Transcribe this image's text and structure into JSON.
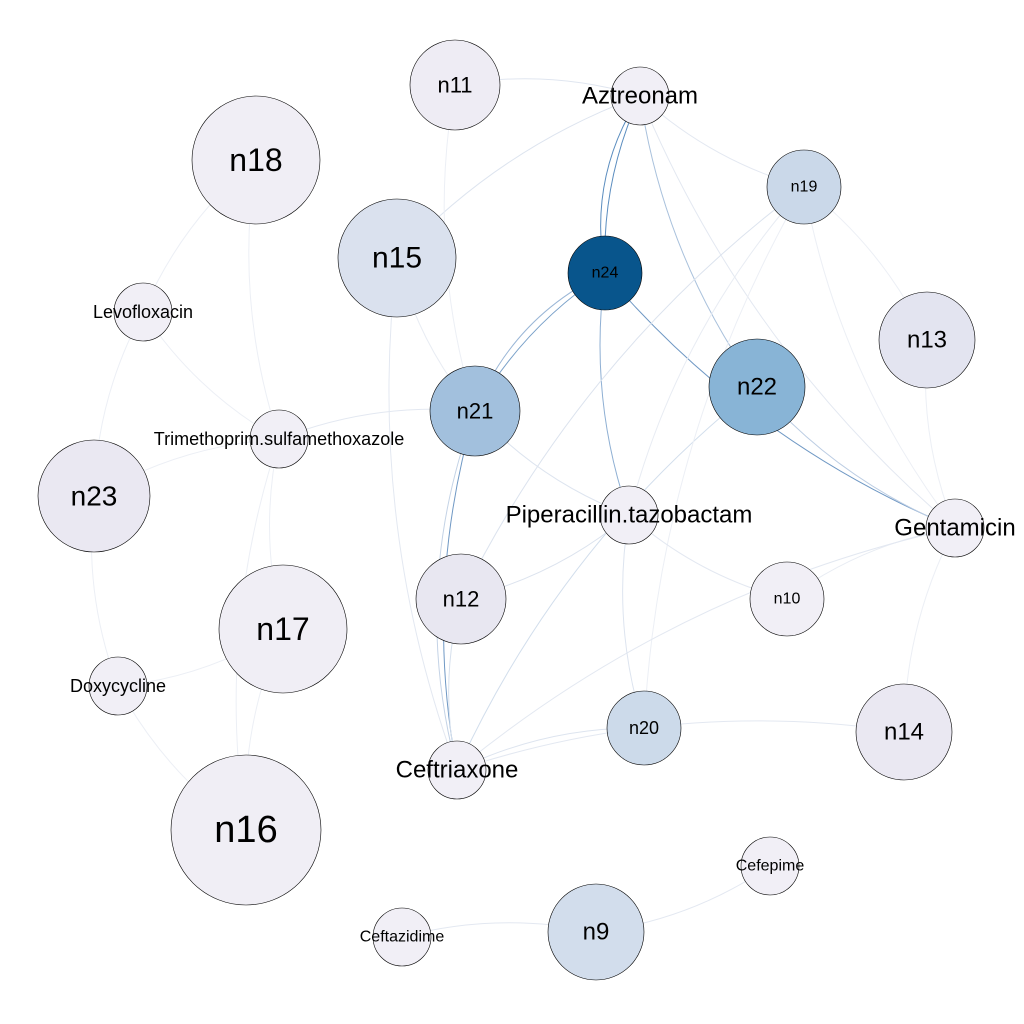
{
  "nodes": [
    {
      "id": "n24",
      "label": "n24",
      "color": "#08558c"
    },
    {
      "id": "n22",
      "label": "n22",
      "color": "#88b4d6"
    },
    {
      "id": "n21",
      "label": "n21",
      "color": "#a2c0dd"
    },
    {
      "id": "n15",
      "label": "n15",
      "color": "#dae1ee"
    },
    {
      "id": "n19",
      "label": "n19",
      "color": "#cad8e9"
    },
    {
      "id": "n20",
      "label": "n20",
      "color": "#ccdaea"
    },
    {
      "id": "n9",
      "label": "n9",
      "color": "#d2ddec"
    },
    {
      "id": "n13",
      "label": "n13",
      "color": "#e3e4f0"
    },
    {
      "id": "n12",
      "label": "n12",
      "color": "#e8e7f1"
    },
    {
      "id": "n23",
      "label": "n23",
      "color": "#eae8f2"
    },
    {
      "id": "n14",
      "label": "n14",
      "color": "#eae8f2"
    },
    {
      "id": "n11",
      "label": "n11",
      "color": "#eeecf4"
    },
    {
      "id": "n18",
      "label": "n18",
      "color": "#f0eef5"
    },
    {
      "id": "n16",
      "label": "n16",
      "color": "#f0eef5"
    },
    {
      "id": "n17",
      "label": "n17",
      "color": "#f0eef5"
    },
    {
      "id": "n10",
      "label": "n10",
      "color": "#f1eff6"
    },
    {
      "id": "Aztreonam",
      "label": "Aztreonam",
      "color": "#f1eff6"
    },
    {
      "id": "Levofloxacin",
      "label": "Levofloxacin",
      "color": "#f1eff6"
    },
    {
      "id": "Trimethoprim",
      "label": "Trimethoprim.sulfamethoxazole",
      "color": "#f1eff6"
    },
    {
      "id": "Piperacillin",
      "label": "Piperacillin.tazobactam",
      "color": "#f1eff6"
    },
    {
      "id": "Gentamicin",
      "label": "Gentamicin",
      "color": "#f1eff6"
    },
    {
      "id": "Doxycycline",
      "label": "Doxycycline",
      "color": "#f1eff6"
    },
    {
      "id": "Ceftriaxone",
      "label": "Ceftriaxone",
      "color": "#f1eff6"
    },
    {
      "id": "Cefepime",
      "label": "Cefepime",
      "color": "#f1eff6"
    },
    {
      "id": "Ceftazidime",
      "label": "Ceftazidime",
      "color": "#f1eff6"
    }
  ],
  "edges": [
    {
      "source": "Aztreonam",
      "target": "n24",
      "color": "#5b8dbf"
    },
    {
      "source": "Aztreonam",
      "target": "n24",
      "color": "#5b8dbf"
    },
    {
      "source": "n24",
      "target": "n21",
      "color": "#7aa1c9"
    },
    {
      "source": "n24",
      "target": "n21",
      "color": "#9ab6d6"
    },
    {
      "source": "n24",
      "target": "Gentamicin",
      "color": "#6f98c4"
    },
    {
      "source": "n24",
      "target": "Piperacillin",
      "color": "#8eafd3"
    },
    {
      "source": "n21",
      "target": "Ceftriaxone",
      "color": "#6f98c4"
    },
    {
      "source": "n21",
      "target": "Ceftriaxone",
      "color": "#c4d3e6"
    },
    {
      "source": "Aztreonam",
      "target": "n22",
      "color": "#a9c1dc"
    },
    {
      "source": "Aztreonam",
      "target": "n11",
      "color": "#e0e6f0"
    },
    {
      "source": "Aztreonam",
      "target": "n15",
      "color": "#dde4ef"
    },
    {
      "source": "Aztreonam",
      "target": "n19",
      "color": "#e3e8f1"
    },
    {
      "source": "Aztreonam",
      "target": "Gentamicin",
      "color": "#e3e8f1"
    },
    {
      "source": "n22",
      "target": "Gentamicin",
      "color": "#bccde3"
    },
    {
      "source": "n22",
      "target": "Ceftriaxone",
      "color": "#d2deec"
    },
    {
      "source": "n19",
      "target": "n12",
      "color": "#dce3ee"
    },
    {
      "source": "n19",
      "target": "Piperacillin",
      "color": "#e8ecf3"
    },
    {
      "source": "n19",
      "target": "Gentamicin",
      "color": "#eceff5"
    },
    {
      "source": "n19",
      "target": "n20",
      "color": "#eceff5"
    },
    {
      "source": "n13",
      "target": "Gentamicin",
      "color": "#eceff5"
    },
    {
      "source": "n13",
      "target": "n19",
      "color": "#eceff5"
    },
    {
      "source": "Gentamicin",
      "target": "n14",
      "color": "#eceff5"
    },
    {
      "source": "Gentamicin",
      "target": "n10",
      "color": "#e8ecf3"
    },
    {
      "source": "Gentamicin",
      "target": "Ceftriaxone",
      "color": "#e3e8f1"
    },
    {
      "source": "n21",
      "target": "Piperacillin",
      "color": "#dde4ef"
    },
    {
      "source": "n21",
      "target": "Trimethoprim",
      "color": "#e3e8f1"
    },
    {
      "source": "n15",
      "target": "Ceftriaxone",
      "color": "#e3e8f1"
    },
    {
      "source": "n15",
      "target": "n21",
      "color": "#e8ecf3"
    },
    {
      "source": "n11",
      "target": "n21",
      "color": "#eceff5"
    },
    {
      "source": "n12",
      "target": "Ceftriaxone",
      "color": "#d6e0ed"
    },
    {
      "source": "n12",
      "target": "Piperacillin",
      "color": "#dce3ee"
    },
    {
      "source": "Piperacillin",
      "target": "n10",
      "color": "#e3e8f1"
    },
    {
      "source": "Piperacillin",
      "target": "n20",
      "color": "#dde4ef"
    },
    {
      "source": "n20",
      "target": "Ceftriaxone",
      "color": "#dde4ef"
    },
    {
      "source": "n14",
      "target": "Ceftriaxone",
      "color": "#e3e8f1"
    },
    {
      "source": "n18",
      "target": "Levofloxacin",
      "color": "#eceff5"
    },
    {
      "source": "n18",
      "target": "Trimethoprim",
      "color": "#eceff5"
    },
    {
      "source": "Levofloxacin",
      "target": "Trimethoprim",
      "color": "#eceff5"
    },
    {
      "source": "Levofloxacin",
      "target": "n23",
      "color": "#eceff5"
    },
    {
      "source": "Trimethoprim",
      "target": "n23",
      "color": "#eceff5"
    },
    {
      "source": "Trimethoprim",
      "target": "n17",
      "color": "#eceff5"
    },
    {
      "source": "Trimethoprim",
      "target": "n16",
      "color": "#eceff5"
    },
    {
      "source": "n23",
      "target": "Doxycycline",
      "color": "#eceff5"
    },
    {
      "source": "Doxycycline",
      "target": "n17",
      "color": "#eceff5"
    },
    {
      "source": "Doxycycline",
      "target": "n16",
      "color": "#eceff5"
    },
    {
      "source": "n17",
      "target": "n16",
      "color": "#eceff5"
    },
    {
      "source": "n9",
      "target": "Ceftazidime",
      "color": "#e3e8f1"
    },
    {
      "source": "n9",
      "target": "Cefepime",
      "color": "#e3e8f1"
    }
  ]
}
